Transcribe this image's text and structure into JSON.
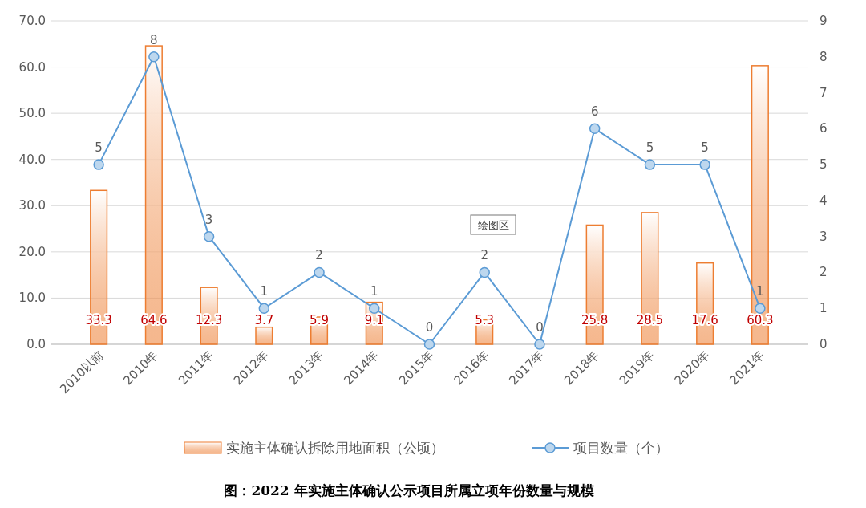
{
  "chart_data": {
    "type": "bar",
    "title": "图：2022 年实施主体确认公示项目所属立项年份数量与规模",
    "categories": [
      "2010以前",
      "2010年",
      "2011年",
      "2012年",
      "2013年",
      "2014年",
      "2015年",
      "2016年",
      "2017年",
      "2018年",
      "2019年",
      "2020年",
      "2021年"
    ],
    "series": [
      {
        "name": "实施主体确认拆除用地面积（公顷）",
        "color": "#ed7d31",
        "values": [
          33.3,
          64.6,
          12.3,
          3.7,
          5.9,
          9.1,
          null,
          5.3,
          null,
          25.8,
          28.5,
          17.6,
          60.3
        ]
      },
      {
        "name": "项目数量（个）",
        "type": "line",
        "axis": "y2",
        "color": "#5b9bd5",
        "marker": "circle",
        "values": [
          5,
          8,
          3,
          1,
          2,
          1,
          0,
          2,
          0,
          6,
          5,
          5,
          1
        ]
      }
    ],
    "ylim": [
      0,
      70
    ],
    "yticks": [
      {
        "value": 0,
        "label": "0.0"
      },
      {
        "value": 10,
        "label": "10.0"
      },
      {
        "value": 20,
        "label": "20.0"
      },
      {
        "value": 30,
        "label": "30.0"
      },
      {
        "value": 40,
        "label": "40.0"
      },
      {
        "value": 50,
        "label": "50.0"
      },
      {
        "value": 60,
        "label": "60.0"
      },
      {
        "value": 70,
        "label": "70.0"
      }
    ],
    "y2lim": [
      0,
      9
    ],
    "y2ticks": [
      0,
      1,
      2,
      3,
      4,
      5,
      6,
      7,
      8,
      9
    ],
    "grid": "y",
    "legend": "bottom",
    "data_labels": true,
    "annotations": [
      "绘图区"
    ]
  }
}
